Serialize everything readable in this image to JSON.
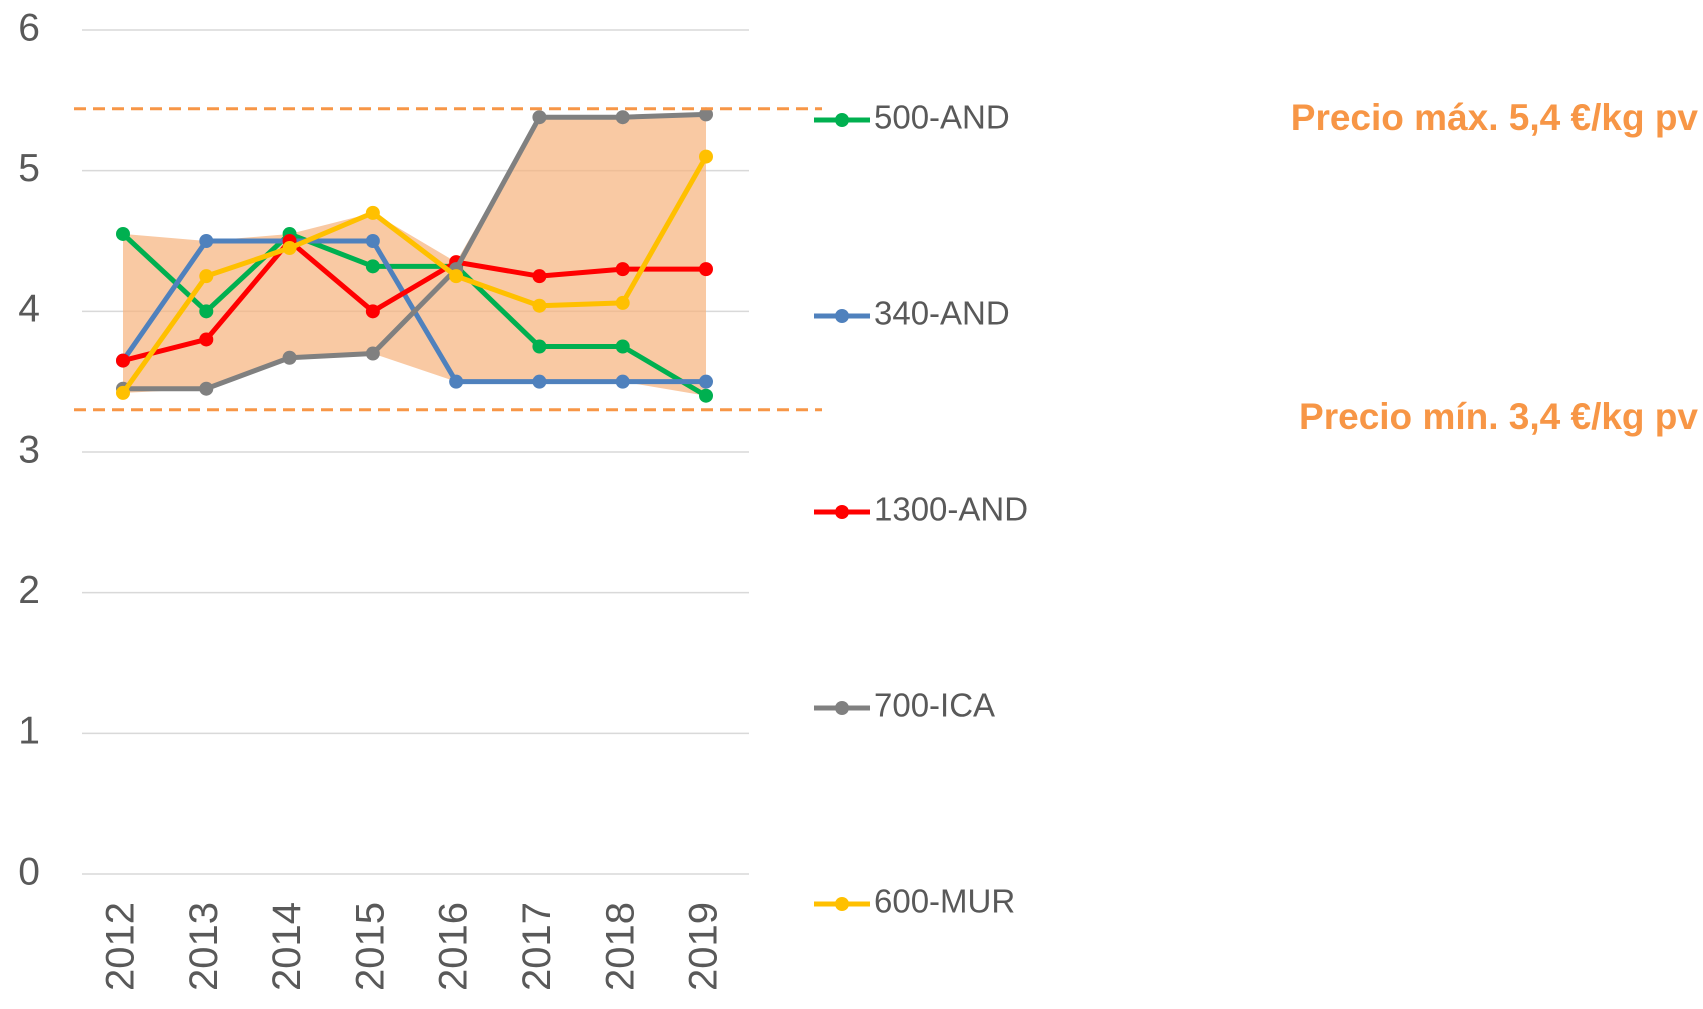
{
  "chart_data": {
    "type": "line",
    "categories": [
      "2012",
      "2013",
      "2014",
      "2015",
      "2016",
      "2017",
      "2018",
      "2019"
    ],
    "series": [
      {
        "name": "500-AND",
        "color": "#00b050",
        "values": [
          4.55,
          4.0,
          4.55,
          4.32,
          4.32,
          3.75,
          3.75,
          3.4
        ]
      },
      {
        "name": "340-AND",
        "color": "#4f81bd",
        "values": [
          3.65,
          4.5,
          4.5,
          4.5,
          3.5,
          3.5,
          3.5,
          3.5
        ]
      },
      {
        "name": "1300-AND",
        "color": "#ff0000",
        "values": [
          3.65,
          3.8,
          4.5,
          4.0,
          4.35,
          4.25,
          4.3,
          4.3
        ]
      },
      {
        "name": "700-ICA",
        "color": "#808080",
        "values": [
          3.45,
          3.45,
          3.67,
          3.7,
          4.3,
          5.38,
          5.38,
          5.4
        ]
      },
      {
        "name": "600-MUR",
        "color": "#ffc000",
        "values": [
          3.42,
          4.25,
          4.45,
          4.7,
          4.25,
          4.04,
          4.06,
          5.1
        ]
      }
    ],
    "ylim": [
      0,
      6
    ],
    "yticks": [
      0,
      1,
      2,
      3,
      4,
      5,
      6
    ],
    "grid": true,
    "band_color": "#f7b27c",
    "reference_lines": [
      {
        "value": 5.44,
        "color": "#f79646"
      },
      {
        "value": 3.3,
        "color": "#f79646"
      }
    ],
    "annotations": [
      "Precio máx. 5,4 €/kg pv",
      "Precio mín. 3,4 €/kg pv"
    ]
  }
}
